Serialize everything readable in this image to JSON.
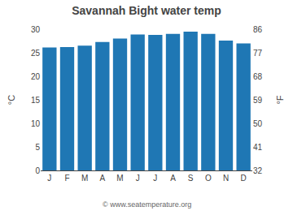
{
  "chart_data": {
    "type": "bar",
    "title": "Savannah Bight water temp",
    "categories": [
      "J",
      "F",
      "M",
      "A",
      "M",
      "J",
      "J",
      "A",
      "S",
      "O",
      "N",
      "D"
    ],
    "values": [
      26.1,
      26.2,
      26.5,
      27.3,
      28.0,
      28.9,
      28.8,
      29.0,
      29.5,
      29.0,
      27.6,
      27.0
    ],
    "ylim": [
      0,
      30
    ],
    "yticks": [
      0,
      5,
      10,
      15,
      20,
      25,
      30
    ],
    "y2lim": [
      32,
      86
    ],
    "y2ticks": [
      32,
      41,
      50,
      59,
      68,
      77,
      86
    ],
    "ylabel": "°C",
    "y2label": "°F",
    "annotations": [
      "© www.seatemperature.org"
    ],
    "grid": false
  }
}
